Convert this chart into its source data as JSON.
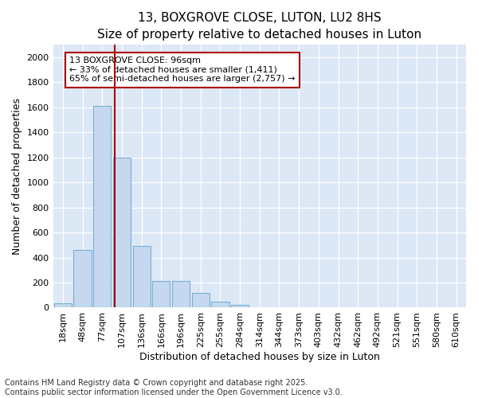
{
  "title1": "13, BOXGROVE CLOSE, LUTON, LU2 8HS",
  "title2": "Size of property relative to detached houses in Luton",
  "xlabel": "Distribution of detached houses by size in Luton",
  "ylabel": "Number of detached properties",
  "categories": [
    "18sqm",
    "48sqm",
    "77sqm",
    "107sqm",
    "136sqm",
    "166sqm",
    "196sqm",
    "225sqm",
    "255sqm",
    "284sqm",
    "314sqm",
    "344sqm",
    "373sqm",
    "403sqm",
    "432sqm",
    "462sqm",
    "492sqm",
    "521sqm",
    "551sqm",
    "580sqm",
    "610sqm"
  ],
  "values": [
    35,
    460,
    1610,
    1200,
    490,
    215,
    215,
    115,
    50,
    20,
    0,
    0,
    0,
    0,
    0,
    0,
    0,
    0,
    0,
    0,
    0
  ],
  "bar_color": "#c5d8ef",
  "bar_edge_color": "#7aafd4",
  "vline_color": "#aa0000",
  "vline_pos": 2.63,
  "annotation_text": "13 BOXGROVE CLOSE: 96sqm\n← 33% of detached houses are smaller (1,411)\n65% of semi-detached houses are larger (2,757) →",
  "annotation_box_facecolor": "#ffffff",
  "annotation_box_edgecolor": "#aa0000",
  "ylim": [
    0,
    2100
  ],
  "yticks": [
    0,
    200,
    400,
    600,
    800,
    1000,
    1200,
    1400,
    1600,
    1800,
    2000
  ],
  "bg_color": "#dce8f5",
  "fig_bg_color": "#ffffff",
  "footer1": "Contains HM Land Registry data © Crown copyright and database right 2025.",
  "footer2": "Contains public sector information licensed under the Open Government Licence v3.0.",
  "title_fontsize": 11,
  "subtitle_fontsize": 10,
  "axis_label_fontsize": 9,
  "tick_fontsize": 8,
  "annotation_fontsize": 8,
  "footer_fontsize": 7
}
